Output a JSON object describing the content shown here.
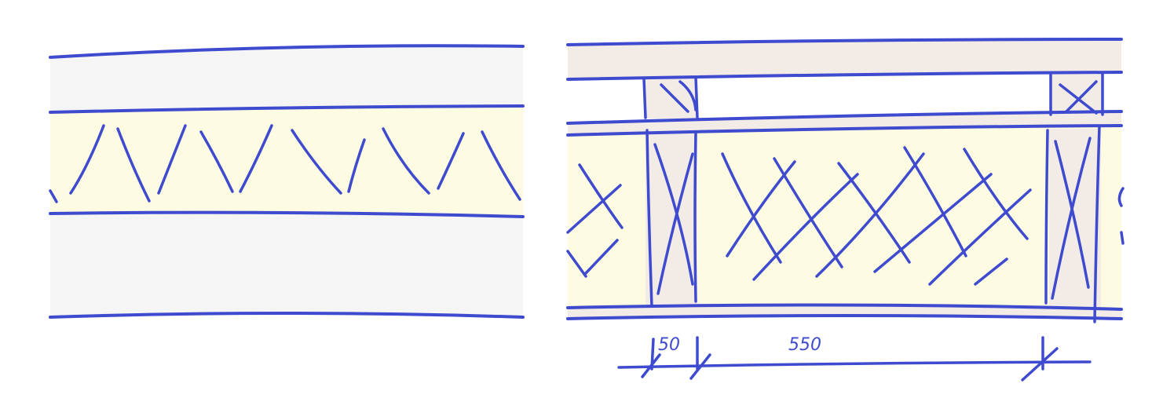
{
  "palette": {
    "ink": "#3f4bcf",
    "board": "#f5f5f5",
    "insulation": "#fdfbe1",
    "timber": "#f3ebe6",
    "background": "#ffffff"
  },
  "dimensions": {
    "stud_width": "50",
    "cavity_width": "550"
  }
}
